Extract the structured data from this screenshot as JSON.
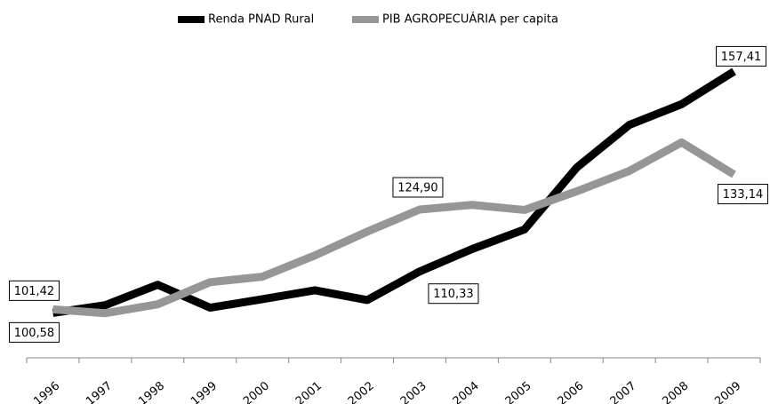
{
  "chart_data": {
    "type": "line",
    "categories": [
      "1996",
      "1997",
      "1998",
      "1999",
      "2000",
      "2001",
      "2002",
      "2003",
      "2004",
      "2005",
      "2006",
      "2007",
      "2008",
      "2009"
    ],
    "series": [
      {
        "name": "Renda PNAD Rural",
        "color": "#000000",
        "values": [
          100.58,
          102.4,
          107.2,
          101.8,
          103.8,
          105.9,
          103.6,
          110.33,
          115.6,
          120.2,
          134.8,
          144.8,
          149.7,
          157.41
        ],
        "value_labels": [
          "100,58",
          null,
          null,
          null,
          null,
          null,
          null,
          "110,33",
          null,
          null,
          null,
          null,
          null,
          "157,41"
        ]
      },
      {
        "name": "PIB AGROPECUÁRIA per capita",
        "color": "#969696",
        "values": [
          101.42,
          100.5,
          102.6,
          107.8,
          109.1,
          114.1,
          119.7,
          124.9,
          126.0,
          124.8,
          129.2,
          133.97,
          140.7,
          133.14
        ],
        "value_labels": [
          "101,42",
          null,
          null,
          null,
          null,
          null,
          null,
          "124,90",
          null,
          null,
          null,
          null,
          null,
          "133,14"
        ]
      }
    ],
    "ylim": [
      90,
      174
    ],
    "legend": "top"
  }
}
